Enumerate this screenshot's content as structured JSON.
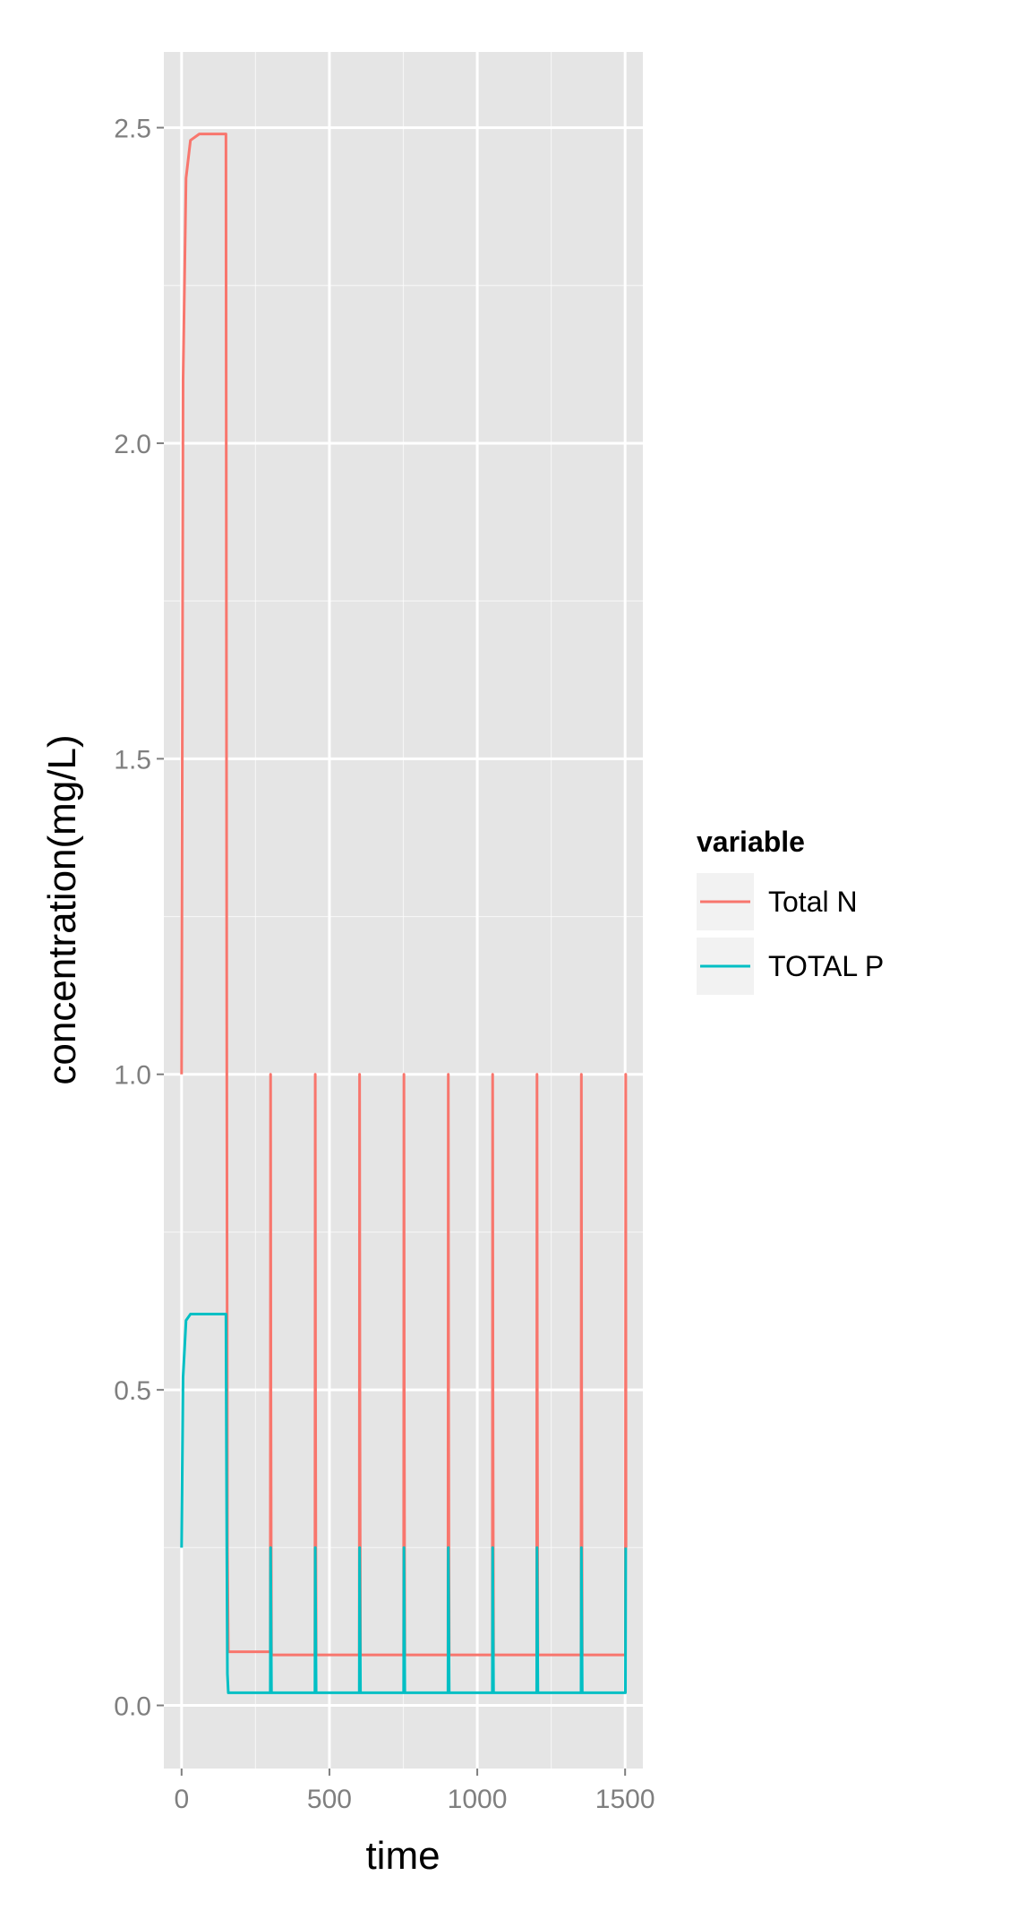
{
  "chart_data": {
    "type": "line",
    "title": "",
    "xlabel": "time",
    "ylabel": "concentration(mg/L)",
    "xlim": [
      -60,
      1560
    ],
    "ylim": [
      -0.1,
      2.62
    ],
    "x_ticks": [
      0,
      500,
      1000,
      1500
    ],
    "x_tick_labels": [
      "0",
      "500",
      "1000",
      "1500"
    ],
    "y_ticks": [
      0.0,
      0.5,
      1.0,
      1.5,
      2.0,
      2.5
    ],
    "y_tick_labels": [
      "0.0",
      "0.5",
      "1.0",
      "1.5",
      "2.0",
      "2.5"
    ],
    "grid": true,
    "background_color": "#e5e5e5",
    "grid_color": "#ffffff",
    "legend": {
      "title": "variable",
      "placement": "right"
    },
    "series": [
      {
        "name": "Total N",
        "color": "#f8766d",
        "x": [
          0,
          5,
          15,
          30,
          60,
          100,
          150,
          153,
          155,
          158,
          300,
          301,
          302,
          303,
          304,
          306,
          451,
          452,
          453,
          454,
          455,
          457,
          601,
          602,
          603,
          604,
          605,
          607,
          751,
          752,
          753,
          754,
          755,
          757,
          901,
          902,
          903,
          904,
          905,
          907,
          1051,
          1052,
          1053,
          1054,
          1055,
          1057,
          1201,
          1202,
          1203,
          1204,
          1205,
          1207,
          1351,
          1352,
          1353,
          1354,
          1355,
          1357,
          1501,
          1502,
          1503
        ],
        "y": [
          1.0,
          2.1,
          2.42,
          2.48,
          2.49,
          2.49,
          2.49,
          1.0,
          0.25,
          0.085,
          0.085,
          1.0,
          0.5,
          0.25,
          0.08,
          0.08,
          0.08,
          1.0,
          0.5,
          0.25,
          0.08,
          0.08,
          0.08,
          1.0,
          0.5,
          0.25,
          0.08,
          0.08,
          0.08,
          1.0,
          0.5,
          0.25,
          0.08,
          0.08,
          0.08,
          1.0,
          0.5,
          0.25,
          0.08,
          0.08,
          0.08,
          1.0,
          0.5,
          0.25,
          0.08,
          0.08,
          0.08,
          1.0,
          0.5,
          0.25,
          0.08,
          0.08,
          0.08,
          1.0,
          0.5,
          0.25,
          0.08,
          0.08,
          0.08,
          1.0,
          0.25
        ]
      },
      {
        "name": "TOTAL P",
        "color": "#00bfc4",
        "x": [
          0,
          5,
          15,
          30,
          60,
          100,
          150,
          153,
          155,
          158,
          300,
          301,
          303,
          304,
          306,
          451,
          452,
          454,
          455,
          457,
          601,
          602,
          604,
          605,
          607,
          751,
          752,
          754,
          755,
          757,
          901,
          902,
          904,
          905,
          907,
          1051,
          1052,
          1054,
          1055,
          1057,
          1201,
          1202,
          1204,
          1205,
          1207,
          1351,
          1352,
          1354,
          1355,
          1357,
          1501,
          1502
        ],
        "y": [
          0.25,
          0.52,
          0.61,
          0.62,
          0.62,
          0.62,
          0.62,
          0.25,
          0.05,
          0.02,
          0.02,
          0.25,
          0.1,
          0.02,
          0.02,
          0.02,
          0.25,
          0.1,
          0.02,
          0.02,
          0.02,
          0.25,
          0.1,
          0.02,
          0.02,
          0.02,
          0.25,
          0.1,
          0.02,
          0.02,
          0.02,
          0.25,
          0.1,
          0.02,
          0.02,
          0.02,
          0.25,
          0.1,
          0.02,
          0.02,
          0.02,
          0.25,
          0.1,
          0.02,
          0.02,
          0.02,
          0.25,
          0.1,
          0.02,
          0.02,
          0.02,
          0.25
        ]
      }
    ]
  }
}
